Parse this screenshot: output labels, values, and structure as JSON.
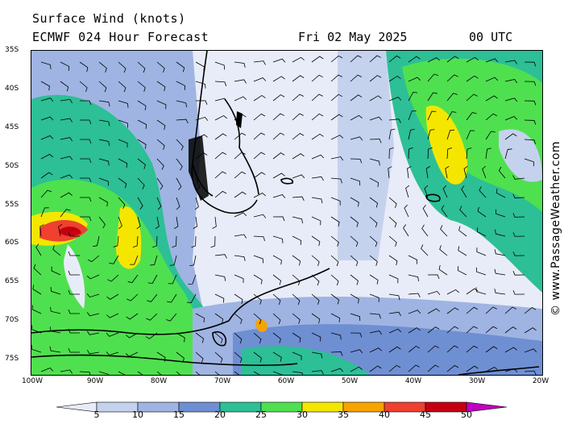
{
  "header": {
    "title_line1": "Surface Wind (knots)",
    "title_line2": "ECMWF 024 Hour Forecast",
    "date": "Fri 02 May 2025",
    "time": "00 UTC"
  },
  "watermark": "© www.PassageWeather.com",
  "axes": {
    "lat_labels": [
      "35S",
      "40S",
      "45S",
      "50S",
      "55S",
      "60S",
      "65S",
      "70S",
      "75S"
    ],
    "lon_labels": [
      "100W",
      "90W",
      "80W",
      "70W",
      "60W",
      "50W",
      "40W",
      "30W",
      "20W"
    ]
  },
  "colorbar": {
    "ticks": [
      "5",
      "10",
      "15",
      "20",
      "25",
      "30",
      "35",
      "40",
      "45",
      "50"
    ],
    "colors": [
      "#e8ecf8",
      "#c5d2ee",
      "#9fb4e2",
      "#6f8fd3",
      "#2dbf96",
      "#4fe04f",
      "#f5e600",
      "#f7a300",
      "#ef4030",
      "#c40010",
      "#c000c0"
    ]
  },
  "palette": {
    "land": "#000000",
    "calm": "#e8ecf8"
  }
}
